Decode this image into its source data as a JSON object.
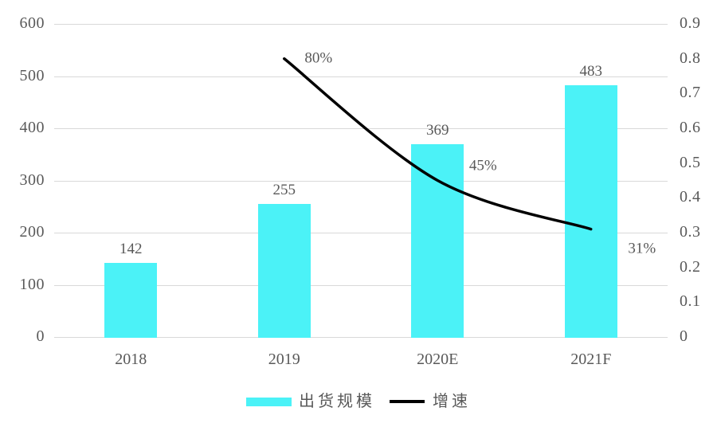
{
  "chart_data": {
    "type": "bar+line combo",
    "categories": [
      "2018",
      "2019",
      "2020E",
      "2021F"
    ],
    "series": [
      {
        "name": "出货规模",
        "type": "bar",
        "axis": "left",
        "values": [
          142,
          255,
          369,
          483
        ],
        "data_labels": [
          "142",
          "255",
          "369",
          "483"
        ],
        "color": "#4BF2F7"
      },
      {
        "name": "增速",
        "type": "line",
        "axis": "right",
        "values": [
          null,
          0.8,
          0.45,
          0.31
        ],
        "data_labels": [
          null,
          "80%",
          "45%",
          "31%"
        ],
        "color": "#000000"
      }
    ],
    "left_axis": {
      "min": 0,
      "max": 600,
      "step": 100,
      "ticks": [
        "0",
        "100",
        "200",
        "300",
        "400",
        "500",
        "600"
      ]
    },
    "right_axis": {
      "min": 0,
      "max": 0.9,
      "step": 0.1,
      "ticks": [
        "0",
        "0.1",
        "0.2",
        "0.3",
        "0.4",
        "0.5",
        "0.6",
        "0.7",
        "0.8",
        "0.9"
      ]
    },
    "grid": true,
    "legend_position": "bottom",
    "title": "",
    "xlabel": "",
    "ylabel": ""
  },
  "legend": {
    "bar_label": "出货规模",
    "line_label": "增速"
  },
  "colors": {
    "bar": "#4BF2F7",
    "line": "#000000",
    "grid": "#d9d9d9",
    "text": "#595959",
    "background": "#ffffff"
  }
}
